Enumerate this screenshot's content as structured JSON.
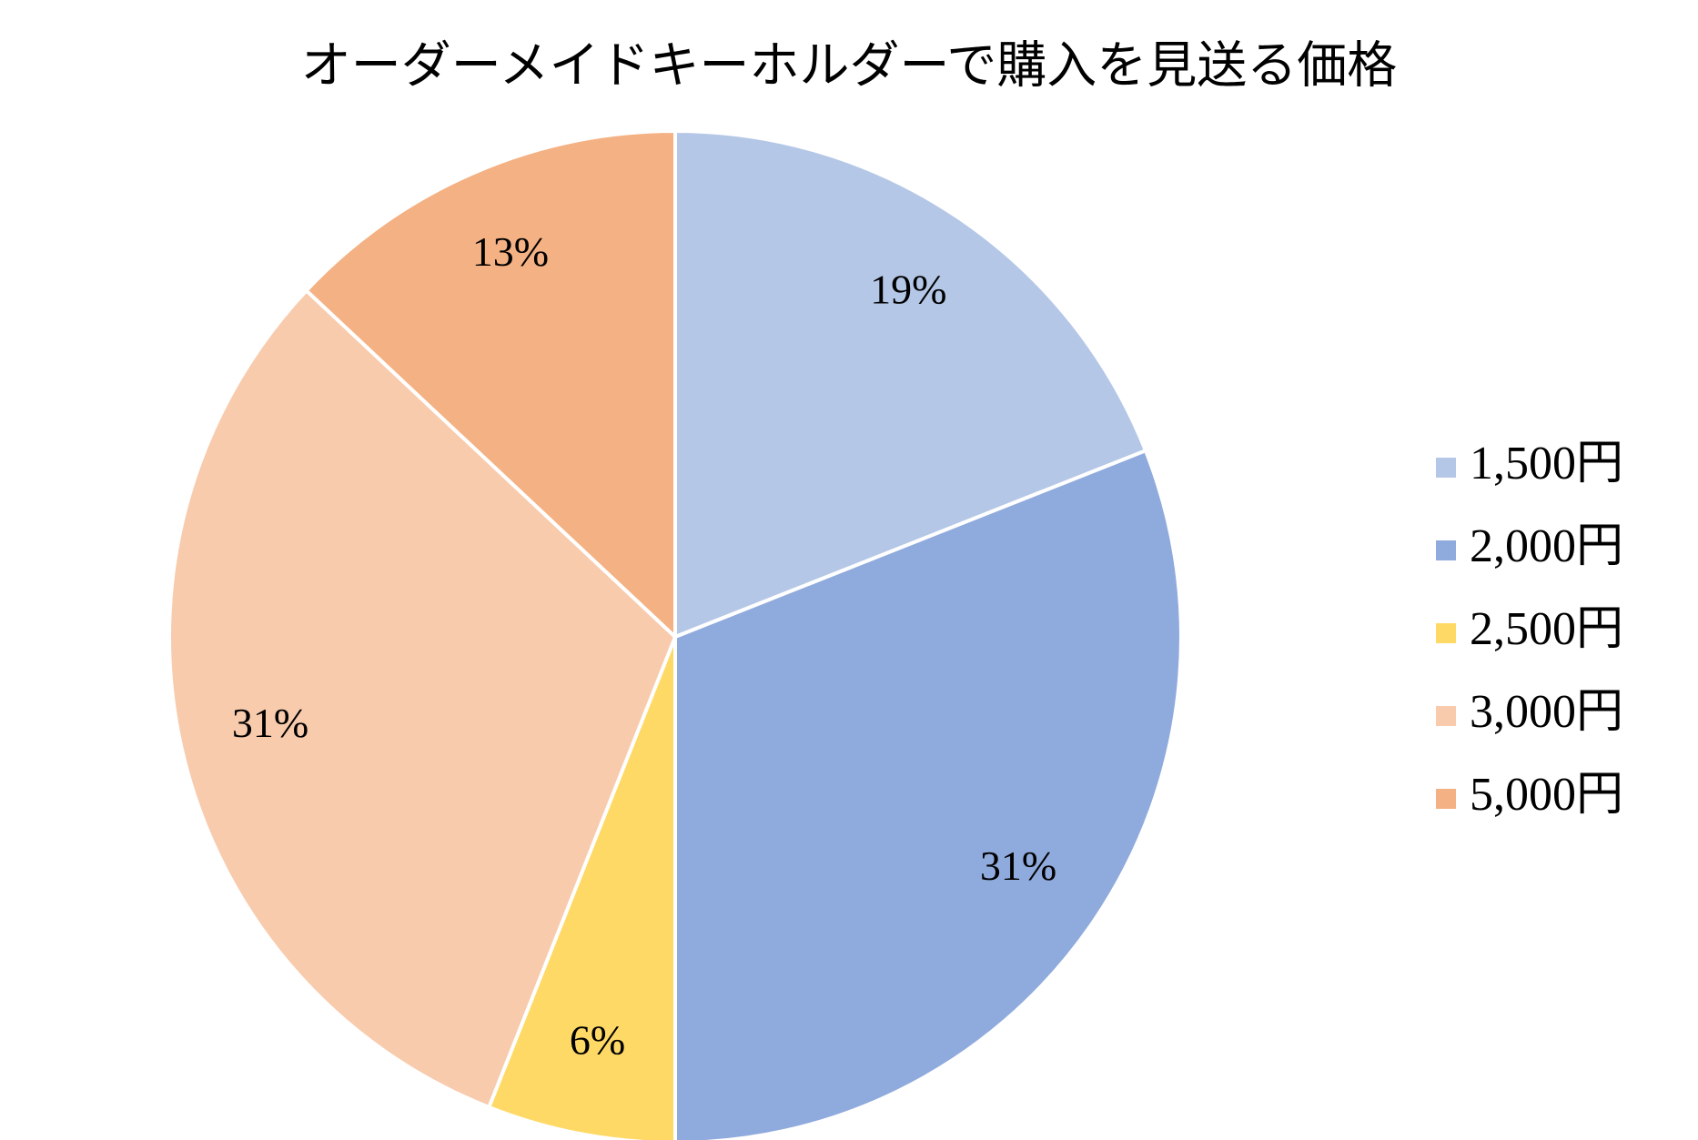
{
  "chart_data": {
    "type": "pie",
    "title": "オーダーメイドキーホルダーで購入を見送る価格",
    "categories": [
      "1,500円",
      "2,000円",
      "2,500円",
      "3,000円",
      "5,000円"
    ],
    "values": [
      19,
      31,
      6,
      31,
      13
    ],
    "value_labels": [
      "19%",
      "31%",
      "6%",
      "31%",
      "13%"
    ],
    "colors": [
      "#b4c7e7",
      "#8faadc",
      "#ffd966",
      "#f8cbad",
      "#f4b183"
    ],
    "legend": "right"
  }
}
